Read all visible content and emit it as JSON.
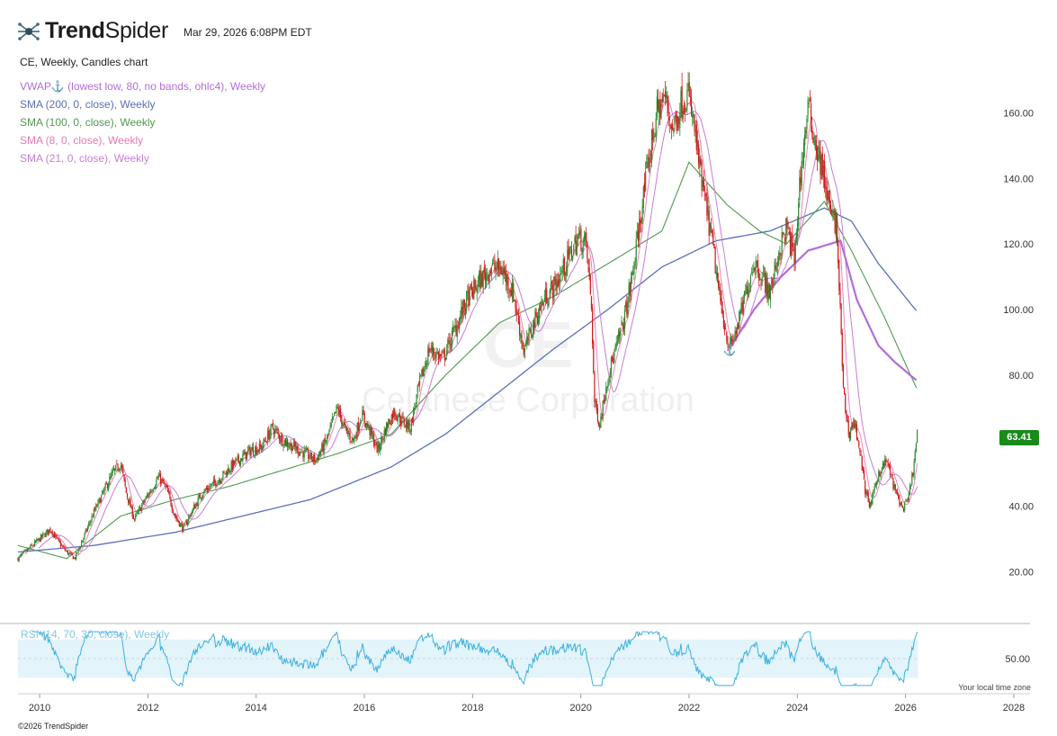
{
  "header": {
    "brand_bold": "Trend",
    "brand_light": "Spider",
    "timestamp": "Mar 29, 2026 6:08PM EDT",
    "chart_title": "CE, Weekly, Candles chart"
  },
  "legend": [
    {
      "label": "VWAP⚓ (lowest low, 80, no bands, ohlc4), Weekly",
      "color": "#b36ed8"
    },
    {
      "label": "SMA (200, 0, close), Weekly",
      "color": "#5b6fb8"
    },
    {
      "label": "SMA (100, 0, close), Weekly",
      "color": "#4f9a4f"
    },
    {
      "label": "SMA (8, 0, close), Weekly",
      "color": "#e57ab0"
    },
    {
      "label": "SMA (21, 0, close), Weekly",
      "color": "#c77dd6"
    }
  ],
  "watermark": {
    "symbol": "CE",
    "company": "Celanese Corporation"
  },
  "last_price_label": "63.41",
  "anchor_symbol": "⚓",
  "rsi_label": "RSI (14, 70, 30, close), Weekly",
  "rsi_tick": "50.00",
  "timezone_note": "Your local time zone",
  "footer": "©2026 TrendSpider",
  "colors": {
    "up": "#2e8b2e",
    "down": "#d11a1a",
    "rsi": "#3ab0e0",
    "price_tag": "#1a8a1a"
  },
  "chart_data": {
    "type": "candlestick",
    "symbol": "CE",
    "interval": "Weekly",
    "y_ticks": [
      20,
      40,
      60,
      80,
      100,
      120,
      140,
      160
    ],
    "y_tick_labels": [
      "20.00",
      "40.00",
      "60.00",
      "80.00",
      "100.00",
      "120.00",
      "140.00",
      "160.00"
    ],
    "ylim": [
      5,
      178
    ],
    "x_ticks": [
      "2010",
      "2012",
      "2014",
      "2016",
      "2018",
      "2020",
      "2022",
      "2024",
      "2026",
      "2028"
    ],
    "xlim": [
      2009.6,
      2028.3
    ],
    "last_close": 63.41,
    "price_path": [
      [
        2009.6,
        24
      ],
      [
        2009.8,
        27
      ],
      [
        2010.0,
        30
      ],
      [
        2010.2,
        33
      ],
      [
        2010.35,
        29
      ],
      [
        2010.5,
        26
      ],
      [
        2010.65,
        24
      ],
      [
        2010.8,
        30
      ],
      [
        2011.0,
        38
      ],
      [
        2011.2,
        45
      ],
      [
        2011.35,
        50
      ],
      [
        2011.5,
        53
      ],
      [
        2011.6,
        44
      ],
      [
        2011.75,
        36
      ],
      [
        2011.95,
        42
      ],
      [
        2012.2,
        49
      ],
      [
        2012.35,
        45
      ],
      [
        2012.5,
        37
      ],
      [
        2012.65,
        33
      ],
      [
        2012.8,
        38
      ],
      [
        2013.0,
        44
      ],
      [
        2013.3,
        48
      ],
      [
        2013.6,
        53
      ],
      [
        2013.9,
        57
      ],
      [
        2014.1,
        58
      ],
      [
        2014.3,
        64
      ],
      [
        2014.5,
        60
      ],
      [
        2014.7,
        58
      ],
      [
        2014.9,
        56
      ],
      [
        2015.1,
        54
      ],
      [
        2015.3,
        60
      ],
      [
        2015.5,
        70
      ],
      [
        2015.65,
        63
      ],
      [
        2015.8,
        60
      ],
      [
        2015.95,
        68
      ],
      [
        2016.1,
        63
      ],
      [
        2016.25,
        57
      ],
      [
        2016.4,
        64
      ],
      [
        2016.55,
        69
      ],
      [
        2016.7,
        66
      ],
      [
        2016.85,
        64
      ],
      [
        2017.0,
        76
      ],
      [
        2017.2,
        88
      ],
      [
        2017.45,
        85
      ],
      [
        2017.7,
        95
      ],
      [
        2017.9,
        103
      ],
      [
        2018.1,
        108
      ],
      [
        2018.35,
        113
      ],
      [
        2018.55,
        112
      ],
      [
        2018.75,
        105
      ],
      [
        2018.95,
        87
      ],
      [
        2019.15,
        97
      ],
      [
        2019.35,
        104
      ],
      [
        2019.55,
        108
      ],
      [
        2019.75,
        115
      ],
      [
        2019.95,
        122
      ],
      [
        2020.1,
        120
      ],
      [
        2020.2,
        100
      ],
      [
        2020.25,
        72
      ],
      [
        2020.35,
        65
      ],
      [
        2020.5,
        80
      ],
      [
        2020.65,
        88
      ],
      [
        2020.8,
        97
      ],
      [
        2020.95,
        110
      ],
      [
        2021.1,
        128
      ],
      [
        2021.25,
        145
      ],
      [
        2021.4,
        160
      ],
      [
        2021.55,
        165
      ],
      [
        2021.7,
        155
      ],
      [
        2021.85,
        163
      ],
      [
        2021.98,
        166
      ],
      [
        2022.1,
        155
      ],
      [
        2022.22,
        140
      ],
      [
        2022.35,
        128
      ],
      [
        2022.45,
        118
      ],
      [
        2022.55,
        105
      ],
      [
        2022.65,
        96
      ],
      [
        2022.75,
        88
      ],
      [
        2022.9,
        95
      ],
      [
        2023.05,
        105
      ],
      [
        2023.2,
        115
      ],
      [
        2023.35,
        110
      ],
      [
        2023.5,
        105
      ],
      [
        2023.65,
        117
      ],
      [
        2023.8,
        125
      ],
      [
        2023.95,
        115
      ],
      [
        2024.05,
        140
      ],
      [
        2024.2,
        162
      ],
      [
        2024.35,
        150
      ],
      [
        2024.5,
        140
      ],
      [
        2024.6,
        130
      ],
      [
        2024.72,
        126
      ],
      [
        2024.78,
        105
      ],
      [
        2024.85,
        75
      ],
      [
        2024.95,
        62
      ],
      [
        2025.05,
        66
      ],
      [
        2025.15,
        58
      ],
      [
        2025.25,
        45
      ],
      [
        2025.35,
        40
      ],
      [
        2025.5,
        50
      ],
      [
        2025.65,
        54
      ],
      [
        2025.8,
        45
      ],
      [
        2025.95,
        39
      ],
      [
        2026.05,
        42
      ],
      [
        2026.15,
        52
      ],
      [
        2026.23,
        63.41
      ]
    ],
    "sma200_path": [
      [
        2009.6,
        26
      ],
      [
        2011.0,
        28
      ],
      [
        2012.5,
        32
      ],
      [
        2013.5,
        36
      ],
      [
        2015.0,
        42
      ],
      [
        2016.5,
        52
      ],
      [
        2017.5,
        62
      ],
      [
        2018.5,
        75
      ],
      [
        2019.5,
        88
      ],
      [
        2020.5,
        100
      ],
      [
        2021.5,
        113
      ],
      [
        2022.5,
        121
      ],
      [
        2023.5,
        124
      ],
      [
        2024.5,
        131
      ],
      [
        2025.0,
        127
      ],
      [
        2025.5,
        114
      ],
      [
        2026.23,
        99
      ]
    ],
    "sma100_path": [
      [
        2009.6,
        28
      ],
      [
        2010.5,
        24
      ],
      [
        2011.5,
        37
      ],
      [
        2012.5,
        42
      ],
      [
        2013.5,
        46
      ],
      [
        2014.5,
        51
      ],
      [
        2015.5,
        56
      ],
      [
        2016.5,
        62
      ],
      [
        2017.5,
        80
      ],
      [
        2018.5,
        96
      ],
      [
        2019.5,
        104
      ],
      [
        2020.5,
        114
      ],
      [
        2021.5,
        124
      ],
      [
        2022.0,
        145
      ],
      [
        2022.7,
        132
      ],
      [
        2023.3,
        124
      ],
      [
        2023.8,
        120
      ],
      [
        2024.5,
        133
      ],
      [
        2025.0,
        118
      ],
      [
        2025.6,
        98
      ],
      [
        2026.23,
        75
      ]
    ],
    "vwap_path": [
      [
        2022.75,
        88
      ],
      [
        2023.2,
        100
      ],
      [
        2023.7,
        110
      ],
      [
        2024.2,
        118
      ],
      [
        2024.8,
        121
      ],
      [
        2025.1,
        103
      ],
      [
        2025.5,
        89
      ],
      [
        2025.8,
        84
      ],
      [
        2026.23,
        78
      ]
    ],
    "rsi": {
      "upper": 70,
      "lower": 30,
      "mid": 50,
      "last": 62
    }
  }
}
